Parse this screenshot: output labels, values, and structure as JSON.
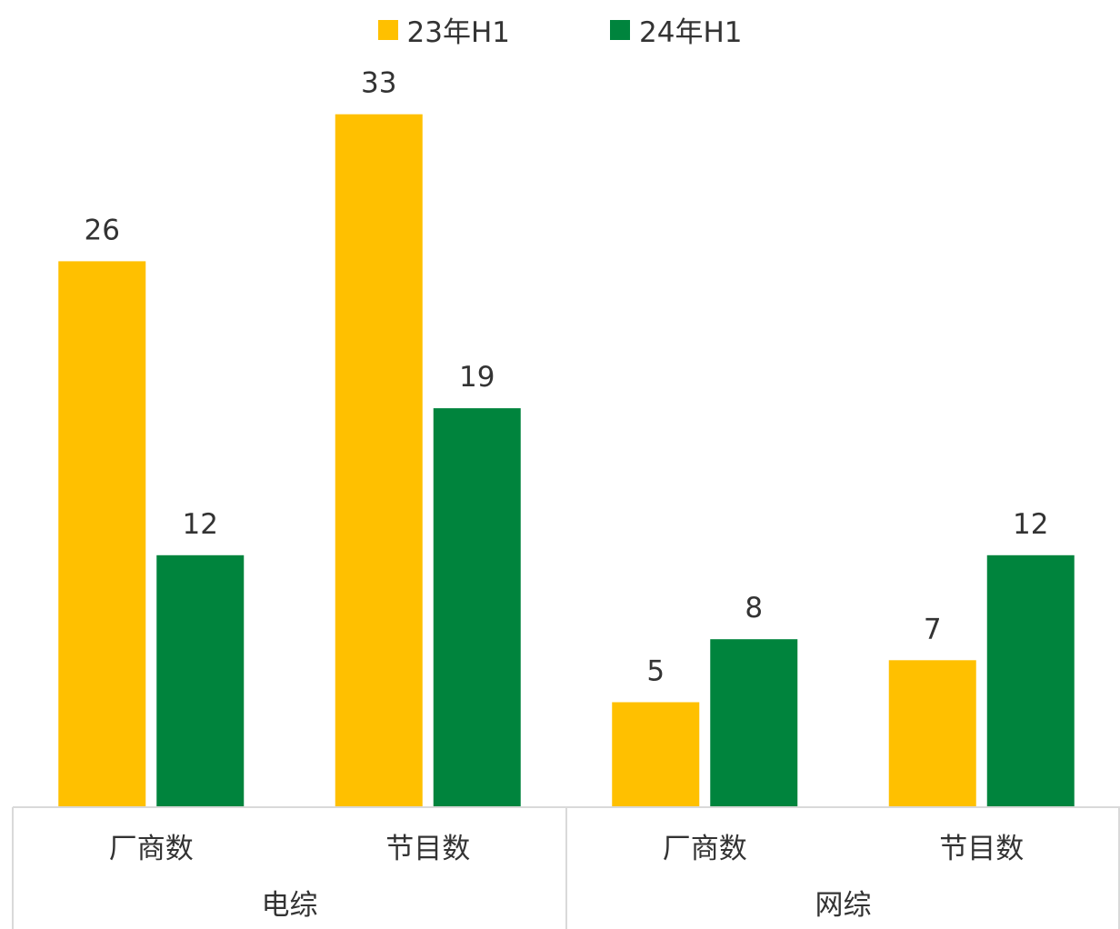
{
  "chart_data": {
    "type": "bar",
    "groups": [
      {
        "label": "电综",
        "categories": [
          "厂商数",
          "节目数"
        ]
      },
      {
        "label": "网综",
        "categories": [
          "厂商数",
          "节目数"
        ]
      }
    ],
    "categories": [
      "厂商数",
      "节目数",
      "厂商数",
      "节目数"
    ],
    "series": [
      {
        "name": "23年H1",
        "color": "#FFC000",
        "values": [
          26,
          33,
          5,
          7
        ]
      },
      {
        "name": "24年H1",
        "color": "#00843D",
        "values": [
          12,
          19,
          8,
          12
        ]
      }
    ],
    "ylim": [
      0,
      40
    ],
    "legend_position": "top-center",
    "grid": false
  }
}
